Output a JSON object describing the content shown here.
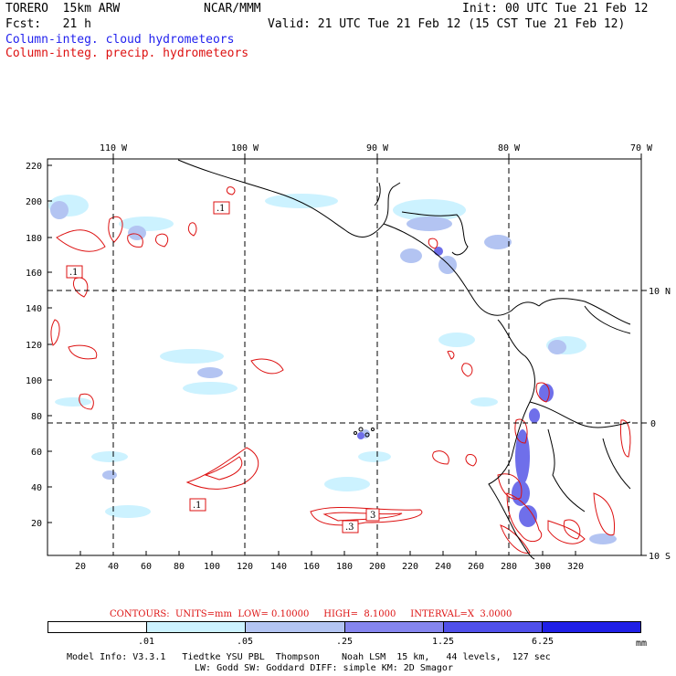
{
  "header": {
    "model": "TORERO  15km ARW",
    "center": "NCAR/MMM",
    "init": "Init: 00 UTC Tue 21 Feb 12",
    "fcst": "Fcst:   21 h",
    "valid": "Valid: 21 UTC Tue 21 Feb 12 (15 CST Tue 21 Feb 12)",
    "field1": "Column-integ. cloud hydrometeors",
    "field2": "Column-integ. precip. hydrometeors"
  },
  "map": {
    "top_lon_labels": [
      "110 W",
      "100 W",
      "90 W",
      "80 W",
      "70 W"
    ],
    "right_lat_labels": [
      "10 N",
      "0",
      "10 S"
    ],
    "y_grid_labels": [
      "220",
      "200",
      "180",
      "160",
      "140",
      "120",
      "100",
      "80",
      "60",
      "40",
      "20"
    ],
    "x_grid_labels": [
      "20",
      "40",
      "60",
      "80",
      "100",
      "120",
      "140",
      "160",
      "180",
      "200",
      "220",
      "240",
      "260",
      "280",
      "300",
      "320"
    ],
    "contour_labels": [
      ".1",
      ".1",
      ".1",
      ".3",
      "3"
    ]
  },
  "contours_line": "CONTOURS:  UNITS=mm  LOW= 0.10000     HIGH=  8.1000     INTERVAL=X  3.0000",
  "legend": {
    "ticks": [
      ".01",
      ".05",
      ".25",
      "1.25",
      "6.25"
    ],
    "unit": "mm",
    "colors": [
      "#ffffff",
      "#ccf2ff",
      "#b3c4f2",
      "#8585ee",
      "#4f4fea",
      "#1f1fe6"
    ]
  },
  "footer": {
    "line1": "Model Info: V3.3.1   Tiedtke YSU PBL  Thompson    Noah LSM  15 km,   44 levels,  127 sec",
    "line2": "LW: Godd SW: Goddard DIFF: simple KM: 2D Smagor"
  }
}
